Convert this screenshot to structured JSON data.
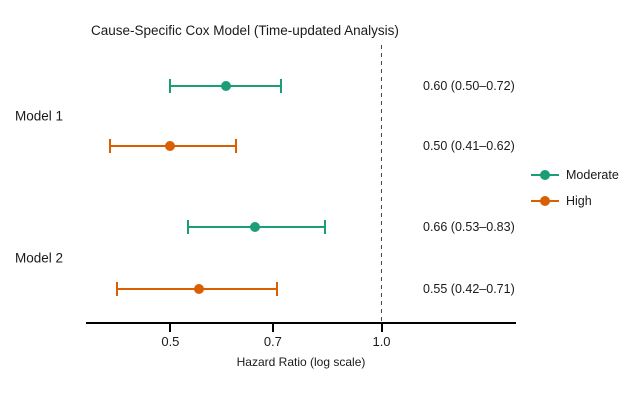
{
  "chart_data": {
    "type": "forest",
    "title": "Cause-Specific Cox Model (Time-updated Analysis)",
    "xlabel": "Hazard Ratio (log scale)",
    "x_scale": "log10",
    "x_ticks": [
      "0.5",
      "0.7",
      "1.0"
    ],
    "x_tick_values": [
      0.5,
      0.7,
      1.0
    ],
    "x_domain": [
      0.379,
      1.555
    ],
    "reference_line": 1.0,
    "grid": "off",
    "legend_position": "right",
    "series": [
      {
        "name": "Moderate",
        "color": "#1b9e77"
      },
      {
        "name": "High",
        "color": "#d95f02"
      }
    ],
    "groups": [
      {
        "label": "Model 1"
      },
      {
        "label": "Model 2"
      }
    ],
    "rows": [
      {
        "group": "Model 1",
        "series": "Moderate",
        "hr": 0.6,
        "ci_low": 0.5,
        "ci_high": 0.72,
        "label": "0.60 (0.50–0.72)"
      },
      {
        "group": "Model 1",
        "series": "High",
        "hr": 0.5,
        "ci_low": 0.41,
        "ci_high": 0.62,
        "label": "0.50 (0.41–0.62)"
      },
      {
        "group": "Model 2",
        "series": "Moderate",
        "hr": 0.66,
        "ci_low": 0.53,
        "ci_high": 0.83,
        "label": "0.66 (0.53–0.83)"
      },
      {
        "group": "Model 2",
        "series": "High",
        "hr": 0.55,
        "ci_low": 0.42,
        "ci_high": 0.71,
        "label": "0.55 (0.42–0.71)"
      }
    ]
  }
}
